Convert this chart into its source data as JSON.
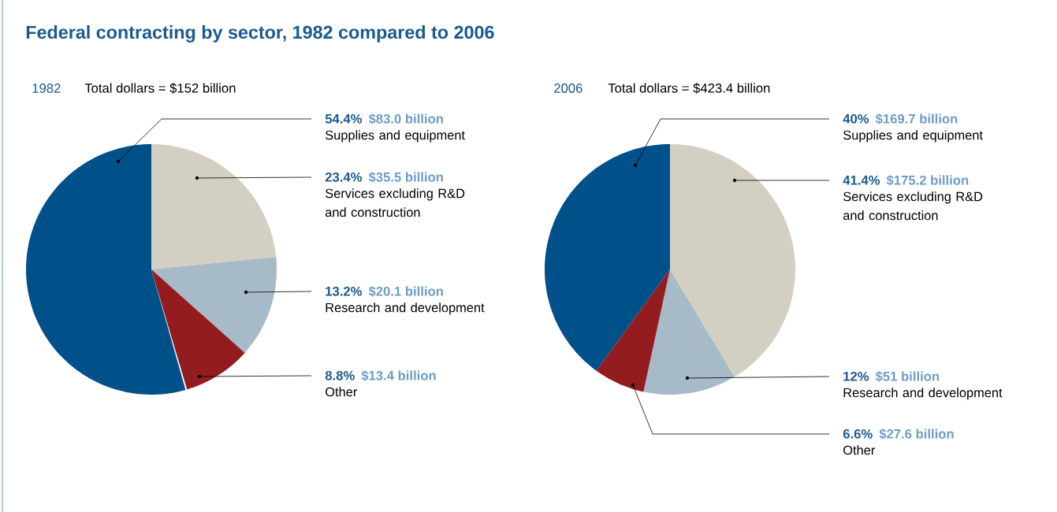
{
  "chart_data": [
    {
      "type": "pie",
      "title": "Federal contracting by sector, 1982 compared to 2006",
      "subtitle": "1982",
      "categories": [
        "Supplies and equipment",
        "Services excluding R&D and construction",
        "Research and development",
        "Other"
      ],
      "values": [
        54.4,
        23.4,
        13.2,
        8.8
      ],
      "colors": [
        "#00508a",
        "#d4cfc3",
        "#a7bac8",
        "#931c1f"
      ],
      "value_labels": [
        "54.4%",
        "23.4%",
        "13.2%",
        "8.8%"
      ],
      "annotations": [
        "Total dollars = $152 billion",
        "$83.0 billion",
        "$35.5 billion",
        "$20.1 billion",
        "$13.4 billion"
      ]
    },
    {
      "type": "pie",
      "subtitle": "2006",
      "categories": [
        "Supplies and equipment",
        "Services excluding R&D and construction",
        "Research and development",
        "Other"
      ],
      "values": [
        40,
        41.4,
        12,
        6.6
      ],
      "colors": [
        "#00508a",
        "#d4cfc3",
        "#a7bac8",
        "#931c1f"
      ],
      "value_labels": [
        "40%",
        "41.4%",
        "12%",
        "6.6%"
      ],
      "annotations": [
        "Total dollars = $423.4 billion",
        "$169.7 billion",
        "$175.2 billion",
        "$51 billion",
        "$27.6 billion"
      ]
    }
  ]
}
